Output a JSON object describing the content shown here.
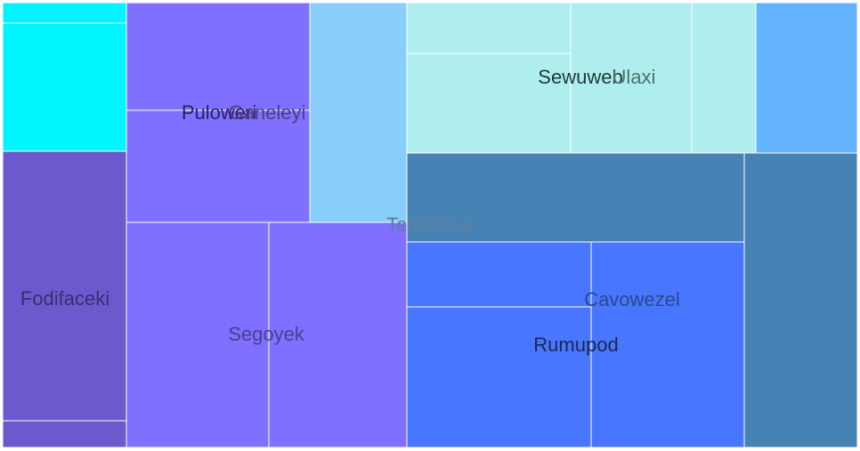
{
  "chart_data": {
    "type": "treemap",
    "labels_shown": [
      "Tehefisive",
      "Puloweri",
      "Ganeleyi",
      "Sewuweb",
      "Ulaxi",
      "Fodifaceki",
      "Segoyek",
      "Cavowezel",
      "Rumupod"
    ],
    "colors": {
      "cyan": "#00f5ff",
      "slate_blue": "#6a5acd",
      "medium_slate_blue": "#8070ff",
      "light_sky_blue": "#87cefa",
      "pale_turquoise": "#afeeee",
      "sky_blue": "#63b3ff",
      "steel_blue": "#4682b4",
      "royal_blue": "#4876ff"
    },
    "tiles": [
      {
        "id": "cyan-top",
        "color": "#00f5ff"
      },
      {
        "id": "cyan-main",
        "color": "#00f5ff"
      },
      {
        "id": "fodifaceki-main",
        "color": "#6a5acd"
      },
      {
        "id": "fodifaceki-bottom",
        "color": "#6a5acd"
      },
      {
        "id": "puloweri-top",
        "color": "#8070ff"
      },
      {
        "id": "puloweri-bottom",
        "color": "#8070ff"
      },
      {
        "id": "ganeleyi",
        "color": "#87cefa"
      },
      {
        "id": "segoyek-left",
        "color": "#8070ff"
      },
      {
        "id": "segoyek-right",
        "color": "#8070ff"
      },
      {
        "id": "sewuweb-top",
        "color": "#afeeee"
      },
      {
        "id": "sewuweb-bottom",
        "color": "#afeeee"
      },
      {
        "id": "ulaxi-a",
        "color": "#afeeee"
      },
      {
        "id": "ulaxi-b",
        "color": "#afeeee"
      },
      {
        "id": "sky-right",
        "color": "#63b3ff"
      },
      {
        "id": "steel-wide",
        "color": "#4682b4"
      },
      {
        "id": "steel-right",
        "color": "#4682b4"
      },
      {
        "id": "rumupod-top",
        "color": "#4876ff"
      },
      {
        "id": "rumupod-bottom",
        "color": "#4876ff"
      },
      {
        "id": "cavowezel",
        "color": "#4876ff"
      }
    ],
    "labels": [
      {
        "text": "Tehefisive",
        "color": "#5f7fa0",
        "level": "root"
      },
      {
        "text": "Puloweri",
        "color": "#2a2060",
        "level": "group"
      },
      {
        "text": "Ganeleyi",
        "color": "#4a3f80",
        "level": "group"
      },
      {
        "text": "Sewuweb",
        "color": "#1e3a3a",
        "level": "group"
      },
      {
        "text": "Ulaxi",
        "color": "#4f7070",
        "level": "group"
      },
      {
        "text": "Fodifaceki",
        "color": "#3a2f70",
        "level": "group"
      },
      {
        "text": "Segoyek",
        "color": "#4a3f90",
        "level": "group"
      },
      {
        "text": "Cavowezel",
        "color": "#2a4a8a",
        "level": "group"
      },
      {
        "text": "Rumupod",
        "color": "#1a2850",
        "level": "group"
      }
    ]
  }
}
